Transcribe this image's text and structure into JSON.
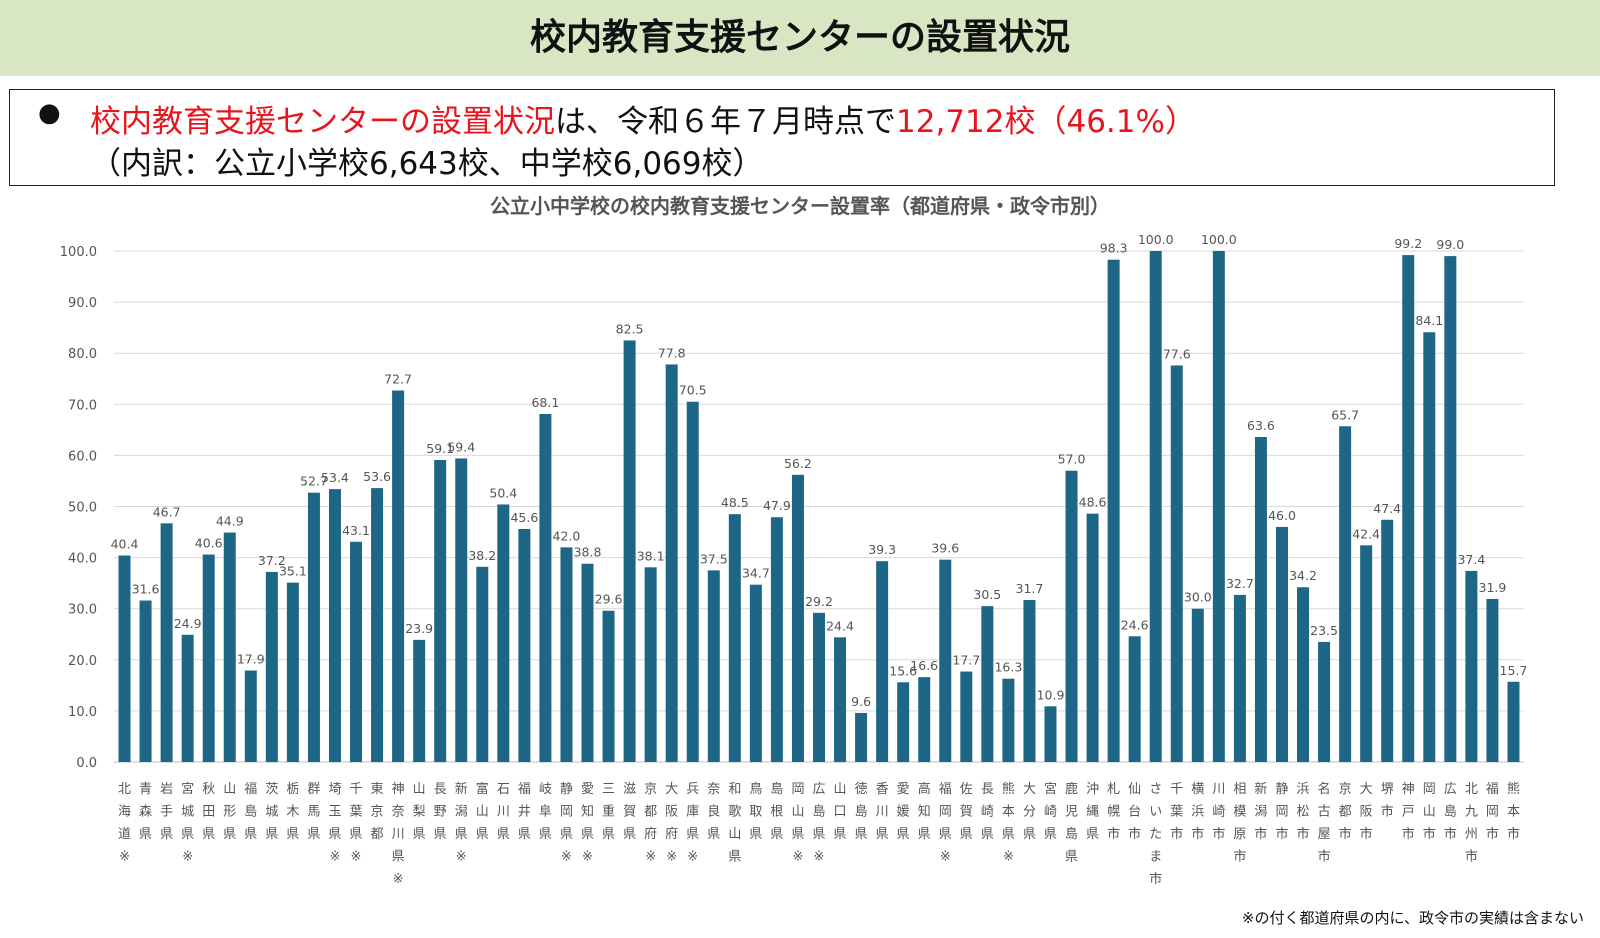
{
  "page_title": "校内教育支援センターの設置状況",
  "summary": {
    "bullet": "●",
    "line1_a": "校内教育支援センターの設置状況",
    "line1_b": "は、令和６年７月時点で",
    "line1_c": "12,712校（46.1%）",
    "line2": "（内訳：公立小学校6,643校、中学校6,069校）"
  },
  "footnote": "※の付く都道府県の内に、政令市の実績は含まない",
  "colors": {
    "bar": "#1e6685",
    "grid": "#d9d9d9",
    "red": "#e8141e",
    "band": "#d9e6c4"
  },
  "chart_data": {
    "type": "bar",
    "title": "公立小中学校の校内教育支援センター設置率（都道府県・政令市別）",
    "ylim": [
      0,
      100
    ],
    "yticks": [
      "0.0",
      "10.0",
      "20.0",
      "30.0",
      "40.0",
      "50.0",
      "60.0",
      "70.0",
      "80.0",
      "90.0",
      "100.0"
    ],
    "categories": [
      "北海道※",
      "青森県",
      "岩手県",
      "宮城県※",
      "秋田県",
      "山形県",
      "福島県",
      "茨城県",
      "栃木県",
      "群馬県",
      "埼玉県※",
      "千葉県※",
      "東京都",
      "神奈川県※",
      "山梨県",
      "長野県",
      "新潟県※",
      "富山県",
      "石川県",
      "福井県",
      "岐阜県",
      "静岡県※",
      "愛知県※",
      "三重県",
      "滋賀県",
      "京都府※",
      "大阪府※",
      "兵庫県※",
      "奈良県",
      "和歌山県",
      "鳥取県",
      "島根県",
      "岡山県※",
      "広島県※",
      "山口県",
      "徳島県",
      "香川県",
      "愛媛県",
      "高知県",
      "福岡県※",
      "佐賀県",
      "長崎県",
      "熊本県※",
      "大分県",
      "宮崎県",
      "鹿児島県",
      "沖縄県",
      "札幌市",
      "仙台市",
      "さいたま市",
      "千葉市",
      "横浜市",
      "川崎市",
      "相模原市",
      "新潟市",
      "静岡市",
      "浜松市",
      "名古屋市",
      "京都市",
      "大阪市",
      "堺市",
      "神戸市",
      "岡山市",
      "広島市",
      "北九州市",
      "福岡市",
      "熊本市"
    ],
    "values": [
      40.4,
      31.6,
      46.7,
      24.9,
      40.6,
      44.9,
      17.9,
      37.2,
      35.1,
      52.7,
      53.4,
      43.1,
      53.6,
      72.7,
      23.9,
      59.1,
      59.4,
      38.2,
      50.4,
      45.6,
      68.1,
      42.0,
      38.8,
      29.6,
      82.5,
      38.1,
      77.8,
      70.5,
      37.5,
      48.5,
      34.7,
      47.9,
      56.2,
      29.2,
      24.4,
      9.6,
      39.3,
      15.6,
      16.6,
      39.6,
      17.7,
      30.5,
      16.3,
      31.7,
      10.9,
      57.0,
      48.6,
      98.3,
      24.6,
      100.0,
      77.6,
      30.0,
      100.0,
      32.7,
      63.6,
      46.0,
      34.2,
      23.5,
      65.7,
      42.4,
      47.4,
      99.2,
      84.1,
      99.0,
      37.4,
      31.9,
      15.7
    ],
    "value_labels": [
      "40.4",
      "31.6",
      "46.7",
      "24.9",
      "40.6",
      "44.9",
      "17.9",
      "37.2",
      "35.1",
      "52.7",
      "53.4",
      "43.1",
      "53.6",
      "72.7",
      "23.9",
      "59.1",
      "59.4",
      "38.2",
      "50.4",
      "45.6",
      "68.1",
      "42.0",
      "38.8",
      "29.6",
      "82.5",
      "38.1",
      "77.8",
      "70.5",
      "37.5",
      "48.5",
      "34.7",
      "47.9",
      "56.2",
      "29.2",
      "24.4",
      "9.6",
      "39.3",
      "15.6",
      "16.6",
      "39.6",
      "17.7",
      "30.5",
      "16.3",
      "31.7",
      "10.9",
      "57.0",
      "48.6",
      "98.3",
      "24.6",
      "100.0",
      "77.6",
      "30.0",
      "100.0",
      "32.7",
      "63.6",
      "46.0",
      "34.2",
      "23.5",
      "65.7",
      "42.4",
      "47.4",
      "99.2",
      "84.1",
      "99.0",
      "37.4",
      "31.9",
      "15.7"
    ],
    "grid": true,
    "legend": "none"
  }
}
